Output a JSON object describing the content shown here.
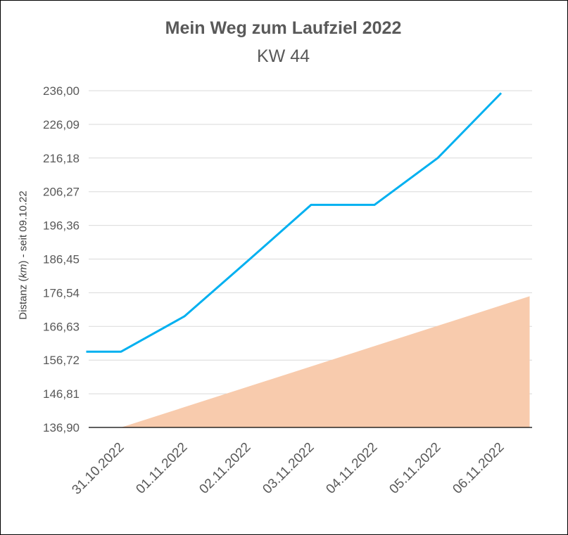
{
  "chart_data": {
    "type": "line",
    "title": "Mein Weg zum Laufziel 2022",
    "subtitle": "KW 44",
    "xlabel": "",
    "ylabel_parts": [
      "Distanz (",
      "km",
      ") - seit 09.10.22"
    ],
    "categories": [
      "31.10.2022",
      "01.11.2022",
      "02.11.2022",
      "03.11.2022",
      "04.11.2022",
      "05.11.2022",
      "06.11.2022"
    ],
    "y_ticks": [
      "136,90",
      "146,81",
      "156,72",
      "166,63",
      "176,54",
      "186,45",
      "196,36",
      "206,27",
      "216,18",
      "226,09",
      "236,00"
    ],
    "ylim": [
      136.9,
      236.0
    ],
    "grid": true,
    "series": [
      {
        "kind": "line",
        "color": "#00B0F0",
        "points": [
          [
            -0.55,
            159.2
          ],
          [
            0,
            159.2
          ],
          [
            1,
            169.6
          ],
          [
            2,
            185.9
          ],
          [
            3,
            202.4
          ],
          [
            4,
            202.4
          ],
          [
            5,
            216.2
          ],
          [
            6,
            235.3
          ]
        ]
      },
      {
        "kind": "area",
        "color": "#F8CBAD",
        "points": [
          [
            0,
            136.9
          ],
          [
            6.45,
            175.5
          ]
        ]
      }
    ]
  }
}
